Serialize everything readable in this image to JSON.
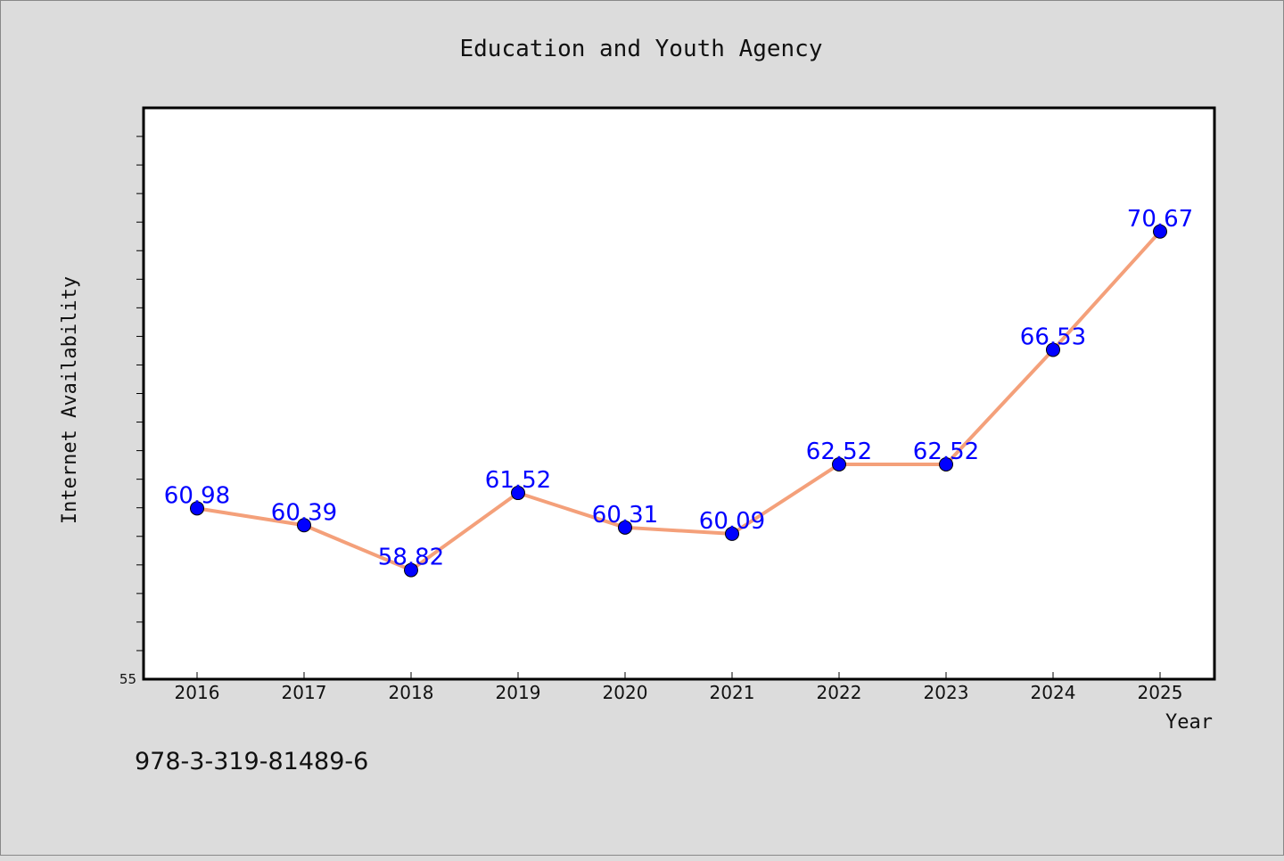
{
  "chart_data": {
    "type": "line",
    "title": "Education and Youth Agency",
    "xlabel": "Year",
    "ylabel": "Internet Availability",
    "categories": [
      "2016",
      "2017",
      "2018",
      "2019",
      "2020",
      "2021",
      "2022",
      "2023",
      "2024",
      "2025"
    ],
    "series": [
      {
        "values": [
          60.98,
          60.39,
          58.82,
          61.52,
          60.31,
          60.09,
          62.52,
          62.52,
          66.53,
          70.67
        ],
        "labels": [
          "60.98",
          "60.39",
          "58.82",
          "61.52",
          "60.31",
          "60.09",
          "62.52",
          "62.52",
          "66.53",
          "70.67"
        ],
        "line_color": "#f4a07a",
        "marker_color": "#0000ff"
      }
    ],
    "ylim": [
      55,
      75
    ],
    "ytick_labels": [
      "55"
    ],
    "grid": false
  },
  "footer_text": "978-3-319-81489-6"
}
